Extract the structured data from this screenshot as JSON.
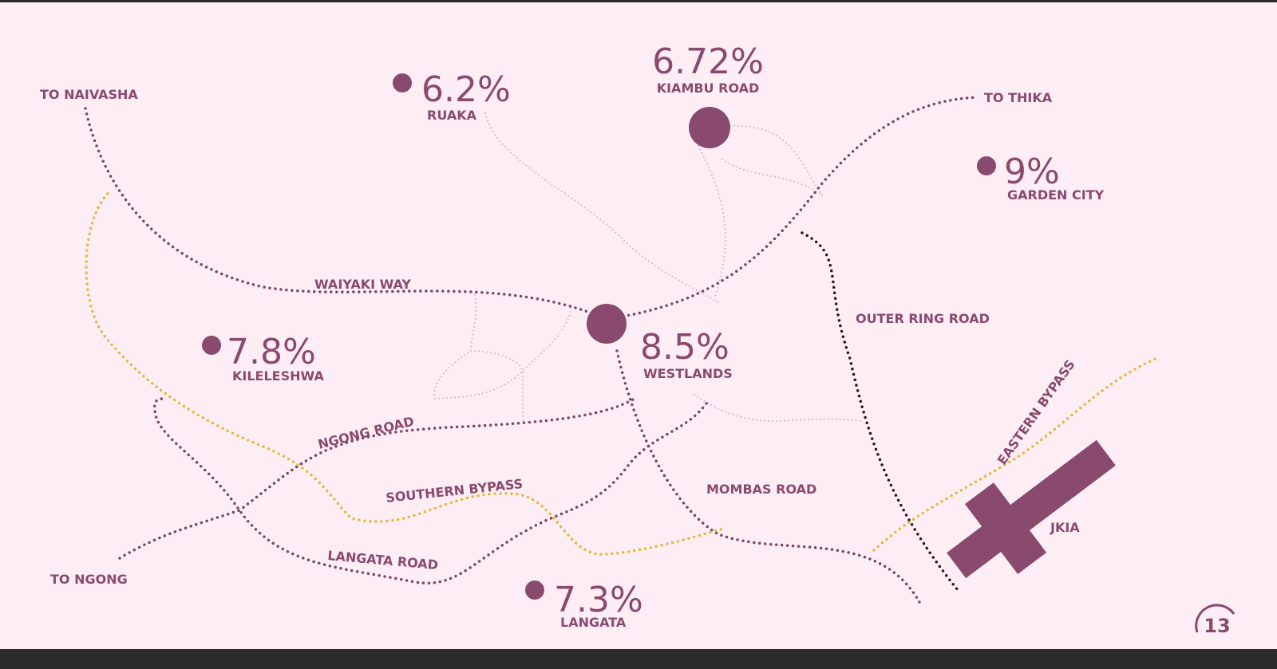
{
  "locations": [
    {
      "value": "6.2%",
      "name": "RUAKA"
    },
    {
      "value": "6.72%",
      "name": "KIAMBU ROAD"
    },
    {
      "value": "9%",
      "name": "GARDEN CITY"
    },
    {
      "value": "7.8%",
      "name": "KILELESHWA"
    },
    {
      "value": "8.5%",
      "name": "WESTLANDS"
    },
    {
      "value": "7.3%",
      "name": "LANGATA"
    }
  ],
  "road_labels": [
    "TO NAIVASHA",
    "TO THIKA",
    "TO NGONG",
    "WAIYAKI WAY",
    "OUTER RING ROAD",
    "NGONG ROAD",
    "SOUTHERN BYPASS",
    "LANGATA ROAD",
    "MOMBAS ROAD",
    "EASTERN BYPASS",
    "JKIA"
  ],
  "page_number": "13"
}
